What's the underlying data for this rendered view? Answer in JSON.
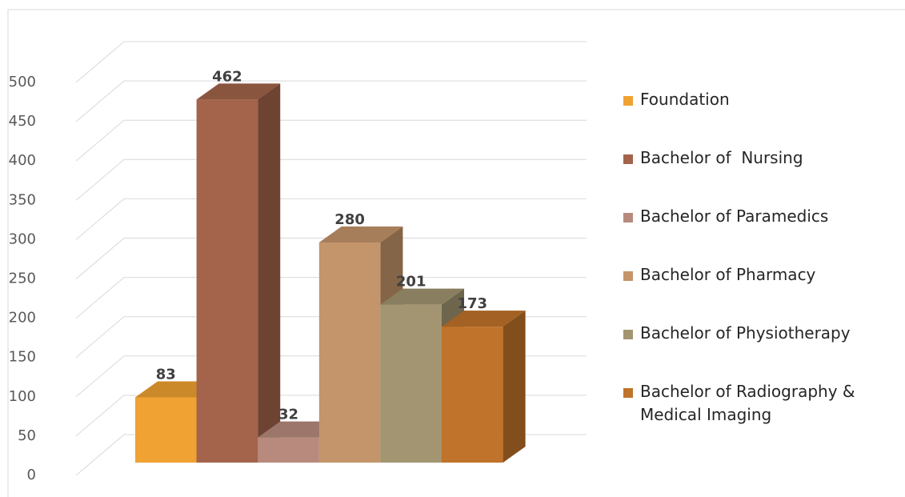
{
  "chart_data": {
    "type": "bar3d",
    "categories": [
      null
    ],
    "series": [
      {
        "name": "Foundation",
        "color": "#f0a232",
        "values": [
          83
        ]
      },
      {
        "name": "Bachelor of  Nursing",
        "color": "#a3644b",
        "values": [
          462
        ]
      },
      {
        "name": "Bachelor of Paramedics",
        "color": "#b88a7e",
        "values": [
          32
        ]
      },
      {
        "name": "Bachelor of Pharmacy",
        "color": "#c4956a",
        "values": [
          280
        ]
      },
      {
        "name": "Bachelor of Physiotherapy",
        "color": "#a39572",
        "values": [
          201
        ]
      },
      {
        "name": "Bachelor of Radiography & Medical Imaging",
        "color": "#c0732a",
        "values": [
          173
        ]
      }
    ],
    "ylim": [
      0,
      500
    ],
    "yticks": [
      0,
      50,
      100,
      150,
      200,
      250,
      300,
      350,
      400,
      450,
      500
    ],
    "grid": true,
    "legend": "right"
  }
}
